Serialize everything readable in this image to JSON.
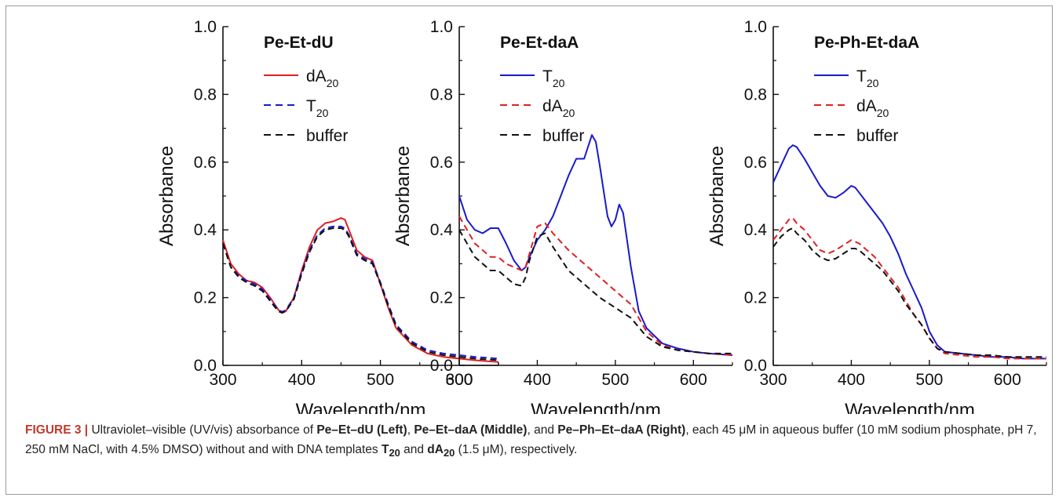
{
  "figure": {
    "caption": {
      "label": "FIGURE 3 |",
      "parts": [
        {
          "text": " Ultraviolet–visible (UV/vis) absorbance of ",
          "bold": false
        },
        {
          "text": "Pe–Et–dU (Left)",
          "bold": true
        },
        {
          "text": ", ",
          "bold": false
        },
        {
          "text": "Pe–Et–daA (Middle)",
          "bold": true
        },
        {
          "text": ", and ",
          "bold": false
        },
        {
          "text": "Pe–Ph–Et–daA (Right)",
          "bold": true
        },
        {
          "text": ", each 45 μM in aqueous buffer (10 mM sodium phosphate, pH 7, 250 mM NaCl, with 4.5% DMSO) without and with DNA templates ",
          "bold": false
        },
        {
          "text": "T",
          "bold": true,
          "sub": "20"
        },
        {
          "text": " and ",
          "bold": false
        },
        {
          "text": "dA",
          "bold": true,
          "sub": "20"
        },
        {
          "text": " (1.5 μM), respectively.",
          "bold": false
        }
      ]
    }
  },
  "chart_data": [
    {
      "type": "line",
      "title": "Pe-Et-dU",
      "xlabel": "Wavelength/nm",
      "ylabel": "Absorbance",
      "xlim": [
        300,
        650
      ],
      "ylim": [
        0,
        1.0
      ],
      "xticks": [
        "300",
        "400",
        "500",
        "600"
      ],
      "yticks": [
        "0.0",
        "0.2",
        "0.4",
        "0.6",
        "0.8",
        "1.0"
      ],
      "legend": "top-right",
      "series": [
        {
          "name": "dA",
          "name_sub": "20",
          "color": "#e02020",
          "dash": "solid",
          "x": [
            300,
            310,
            320,
            330,
            340,
            350,
            360,
            370,
            375,
            380,
            390,
            400,
            410,
            420,
            430,
            440,
            450,
            455,
            460,
            470,
            480,
            490,
            500,
            510,
            520,
            540,
            560,
            580,
            600,
            620,
            650
          ],
          "y": [
            0.37,
            0.3,
            0.27,
            0.25,
            0.245,
            0.23,
            0.2,
            0.165,
            0.155,
            0.16,
            0.2,
            0.28,
            0.35,
            0.4,
            0.42,
            0.425,
            0.435,
            0.43,
            0.4,
            0.34,
            0.32,
            0.31,
            0.24,
            0.17,
            0.11,
            0.06,
            0.035,
            0.025,
            0.02,
            0.015,
            0.01
          ]
        },
        {
          "name": "T",
          "name_sub": "20",
          "color": "#1a1acc",
          "dash": "dashed",
          "x": [
            300,
            310,
            320,
            330,
            340,
            350,
            360,
            370,
            375,
            380,
            390,
            400,
            410,
            420,
            430,
            440,
            450,
            455,
            460,
            470,
            480,
            490,
            500,
            510,
            520,
            540,
            560,
            580,
            600,
            620,
            650
          ],
          "y": [
            0.36,
            0.29,
            0.265,
            0.25,
            0.24,
            0.225,
            0.195,
            0.165,
            0.158,
            0.163,
            0.2,
            0.275,
            0.34,
            0.385,
            0.405,
            0.41,
            0.41,
            0.405,
            0.385,
            0.33,
            0.315,
            0.305,
            0.245,
            0.18,
            0.12,
            0.07,
            0.045,
            0.035,
            0.03,
            0.025,
            0.02
          ]
        },
        {
          "name": "buffer",
          "color": "#111111",
          "dash": "dashed",
          "x": [
            300,
            310,
            320,
            330,
            340,
            350,
            360,
            370,
            375,
            380,
            390,
            400,
            410,
            420,
            430,
            440,
            450,
            455,
            460,
            470,
            480,
            490,
            500,
            510,
            520,
            540,
            560,
            580,
            600,
            620,
            650
          ],
          "y": [
            0.36,
            0.29,
            0.26,
            0.245,
            0.235,
            0.22,
            0.19,
            0.16,
            0.155,
            0.16,
            0.195,
            0.27,
            0.335,
            0.38,
            0.4,
            0.405,
            0.405,
            0.4,
            0.38,
            0.325,
            0.31,
            0.3,
            0.24,
            0.175,
            0.115,
            0.065,
            0.04,
            0.03,
            0.025,
            0.02,
            0.015
          ]
        }
      ]
    },
    {
      "type": "line",
      "title": "Pe-Et-daA",
      "xlabel": "Wavelength/nm",
      "ylabel": "Absorbance",
      "xlim": [
        300,
        650
      ],
      "ylim": [
        0,
        1.0
      ],
      "xticks": [
        "300",
        "400",
        "500",
        "600"
      ],
      "yticks": [
        "0.0",
        "0.2",
        "0.4",
        "0.6",
        "0.8",
        "1.0"
      ],
      "legend": "top-right",
      "series": [
        {
          "name": "T",
          "name_sub": "20",
          "color": "#1a1acc",
          "dash": "solid",
          "x": [
            300,
            310,
            320,
            330,
            340,
            350,
            360,
            370,
            380,
            385,
            390,
            400,
            410,
            420,
            430,
            440,
            450,
            460,
            470,
            475,
            480,
            490,
            495,
            500,
            505,
            510,
            520,
            530,
            540,
            560,
            580,
            600,
            620,
            650
          ],
          "y": [
            0.5,
            0.43,
            0.4,
            0.39,
            0.405,
            0.405,
            0.36,
            0.31,
            0.28,
            0.29,
            0.32,
            0.37,
            0.4,
            0.44,
            0.5,
            0.56,
            0.61,
            0.61,
            0.68,
            0.66,
            0.59,
            0.44,
            0.41,
            0.43,
            0.475,
            0.45,
            0.29,
            0.16,
            0.11,
            0.065,
            0.05,
            0.04,
            0.035,
            0.03
          ]
        },
        {
          "name": "dA",
          "name_sub": "20",
          "color": "#e02020",
          "dash": "dashed",
          "x": [
            300,
            320,
            340,
            350,
            360,
            370,
            380,
            385,
            390,
            400,
            410,
            420,
            440,
            460,
            480,
            500,
            520,
            540,
            560,
            580,
            600,
            620,
            650
          ],
          "y": [
            0.44,
            0.36,
            0.32,
            0.32,
            0.3,
            0.29,
            0.28,
            0.29,
            0.33,
            0.41,
            0.42,
            0.39,
            0.34,
            0.3,
            0.26,
            0.22,
            0.18,
            0.1,
            0.06,
            0.045,
            0.04,
            0.035,
            0.03
          ]
        },
        {
          "name": "buffer",
          "color": "#111111",
          "dash": "dashed",
          "x": [
            300,
            320,
            340,
            350,
            360,
            370,
            380,
            385,
            390,
            400,
            410,
            420,
            440,
            460,
            480,
            500,
            520,
            540,
            560,
            580,
            600,
            620,
            650
          ],
          "y": [
            0.4,
            0.32,
            0.28,
            0.28,
            0.26,
            0.24,
            0.235,
            0.26,
            0.31,
            0.38,
            0.39,
            0.35,
            0.28,
            0.24,
            0.2,
            0.17,
            0.14,
            0.085,
            0.055,
            0.045,
            0.04,
            0.035,
            0.035
          ]
        }
      ]
    },
    {
      "type": "line",
      "title": "Pe-Ph-Et-daA",
      "xlabel": "Wavelength/nm",
      "ylabel": "Absorbance",
      "xlim": [
        300,
        650
      ],
      "ylim": [
        0,
        1.0
      ],
      "xticks": [
        "300",
        "400",
        "500",
        "600"
      ],
      "yticks": [
        "0.0",
        "0.2",
        "0.4",
        "0.6",
        "0.8",
        "1.0"
      ],
      "legend": "top-right",
      "series": [
        {
          "name": "T",
          "name_sub": "20",
          "color": "#1a1acc",
          "dash": "solid",
          "x": [
            300,
            310,
            320,
            325,
            330,
            340,
            350,
            360,
            370,
            380,
            390,
            400,
            405,
            410,
            420,
            430,
            440,
            450,
            460,
            470,
            480,
            490,
            500,
            510,
            520,
            540,
            560,
            580,
            600,
            620,
            650
          ],
          "y": [
            0.54,
            0.59,
            0.64,
            0.65,
            0.645,
            0.61,
            0.57,
            0.53,
            0.5,
            0.495,
            0.51,
            0.53,
            0.525,
            0.51,
            0.48,
            0.45,
            0.42,
            0.38,
            0.33,
            0.27,
            0.22,
            0.17,
            0.1,
            0.06,
            0.04,
            0.035,
            0.03,
            0.025,
            0.025,
            0.02,
            0.02
          ]
        },
        {
          "name": "dA",
          "name_sub": "20",
          "color": "#e02020",
          "dash": "dashed",
          "x": [
            300,
            310,
            320,
            325,
            330,
            340,
            350,
            360,
            370,
            380,
            390,
            400,
            405,
            410,
            420,
            430,
            440,
            450,
            460,
            470,
            480,
            490,
            500,
            510,
            520,
            540,
            560,
            580,
            600,
            620,
            650
          ],
          "y": [
            0.37,
            0.4,
            0.43,
            0.435,
            0.42,
            0.4,
            0.37,
            0.34,
            0.33,
            0.34,
            0.355,
            0.37,
            0.365,
            0.36,
            0.34,
            0.32,
            0.29,
            0.26,
            0.23,
            0.19,
            0.15,
            0.12,
            0.08,
            0.05,
            0.035,
            0.03,
            0.025,
            0.025,
            0.02,
            0.02,
            0.02
          ]
        },
        {
          "name": "buffer",
          "color": "#111111",
          "dash": "dashed",
          "x": [
            300,
            310,
            320,
            325,
            330,
            340,
            350,
            360,
            370,
            380,
            390,
            400,
            405,
            410,
            420,
            430,
            440,
            450,
            460,
            470,
            480,
            490,
            500,
            510,
            520,
            540,
            560,
            580,
            600,
            620,
            650
          ],
          "y": [
            0.35,
            0.38,
            0.4,
            0.405,
            0.39,
            0.37,
            0.34,
            0.32,
            0.31,
            0.315,
            0.33,
            0.345,
            0.345,
            0.34,
            0.32,
            0.3,
            0.28,
            0.25,
            0.22,
            0.18,
            0.15,
            0.12,
            0.08,
            0.05,
            0.04,
            0.035,
            0.03,
            0.03,
            0.025,
            0.025,
            0.025
          ]
        }
      ]
    }
  ]
}
